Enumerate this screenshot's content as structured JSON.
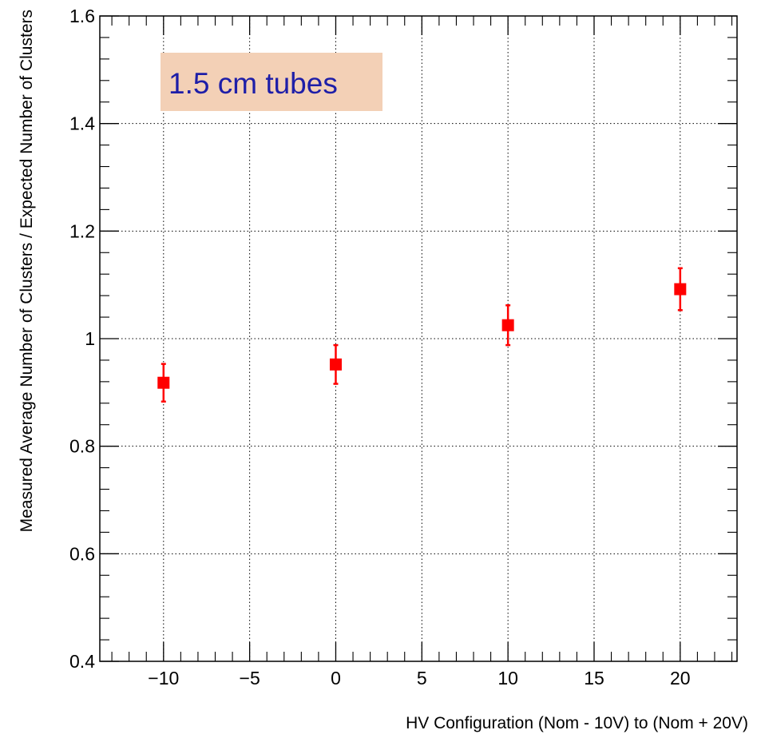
{
  "chart_data": {
    "type": "scatter",
    "title": "",
    "xlabel": "HV Configuration (Nom - 10V) to (Nom + 20V)",
    "ylabel": "Measured Average Number of Clusters / Expected Number of Clusters",
    "xlim": [
      -13.7,
      23.3
    ],
    "ylim": [
      0.4,
      1.6
    ],
    "xticks": [
      -10,
      -5,
      0,
      5,
      10,
      15,
      20
    ],
    "xtick_labels": [
      "−10",
      "−5",
      "0",
      "5",
      "10",
      "15",
      "20"
    ],
    "yticks": [
      0.4,
      0.6,
      0.8,
      1.0,
      1.2,
      1.4,
      1.6
    ],
    "ytick_labels": [
      "0.4",
      "0.6",
      "0.8",
      "1",
      "1.2",
      "1.4",
      "1.6"
    ],
    "grid": true,
    "series": [
      {
        "color": "#ff0000",
        "marker": "square",
        "x": [
          -10,
          0,
          10,
          20
        ],
        "y": [
          0.918,
          0.952,
          1.025,
          1.092
        ],
        "yerr": [
          0.035,
          0.036,
          0.037,
          0.039
        ]
      }
    ],
    "annotation": {
      "text": "1.5 cm tubes",
      "text_color": "#1e1ea8",
      "background_color": "#f3d0b6"
    }
  }
}
